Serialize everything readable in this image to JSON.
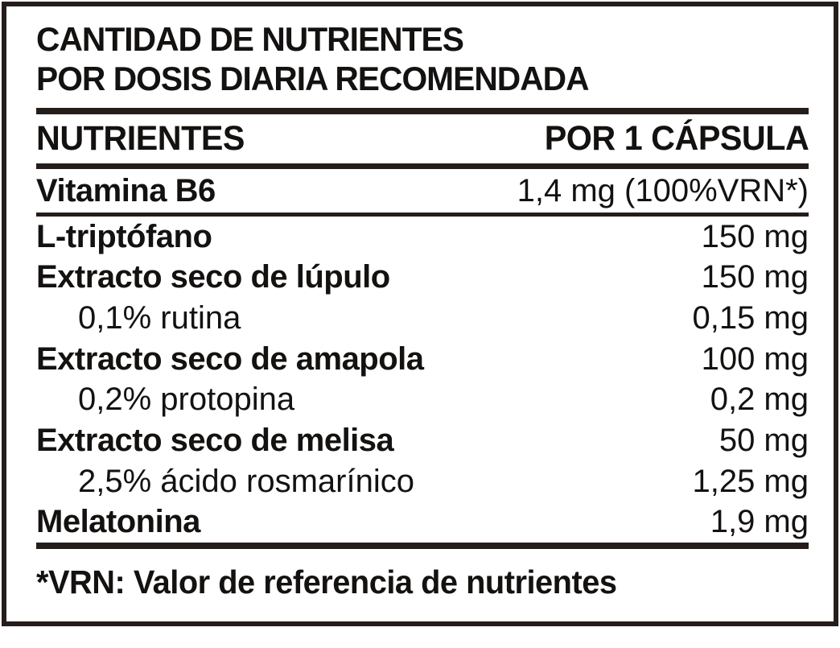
{
  "panel": {
    "title": {
      "line1": "CANTIDAD DE NUTRIENTES",
      "line2": "POR DOSIS DIARIA RECOMENDADA"
    },
    "columns": {
      "nutrients": "NUTRIENTES",
      "per_capsule": "POR 1 CÁPSULA"
    },
    "vitamin_row": {
      "label": "Vitamina B6",
      "value": "1,4 mg (100%VRN*)"
    },
    "rows": [
      {
        "label": "L-triptófano",
        "value": "150 mg",
        "sub": false
      },
      {
        "label": "Extracto seco de lúpulo",
        "value": "150 mg",
        "sub": false
      },
      {
        "label": "0,1% rutina",
        "value": "0,15 mg",
        "sub": true
      },
      {
        "label": "Extracto seco de amapola",
        "value": "100 mg",
        "sub": false
      },
      {
        "label": "0,2% protopina",
        "value": "0,2 mg",
        "sub": true
      },
      {
        "label": "Extracto seco de melisa",
        "value": "50 mg",
        "sub": false
      },
      {
        "label": "2,5% ácido rosmarínico",
        "value": "1,25 mg",
        "sub": true
      },
      {
        "label": "Melatonina",
        "value": "1,9 mg",
        "sub": false
      }
    ],
    "footnote": "*VRN: Valor de referencia de nutrientes",
    "colors": {
      "ink": "#241d1a",
      "text": "#141210",
      "background": "#ffffff"
    }
  }
}
